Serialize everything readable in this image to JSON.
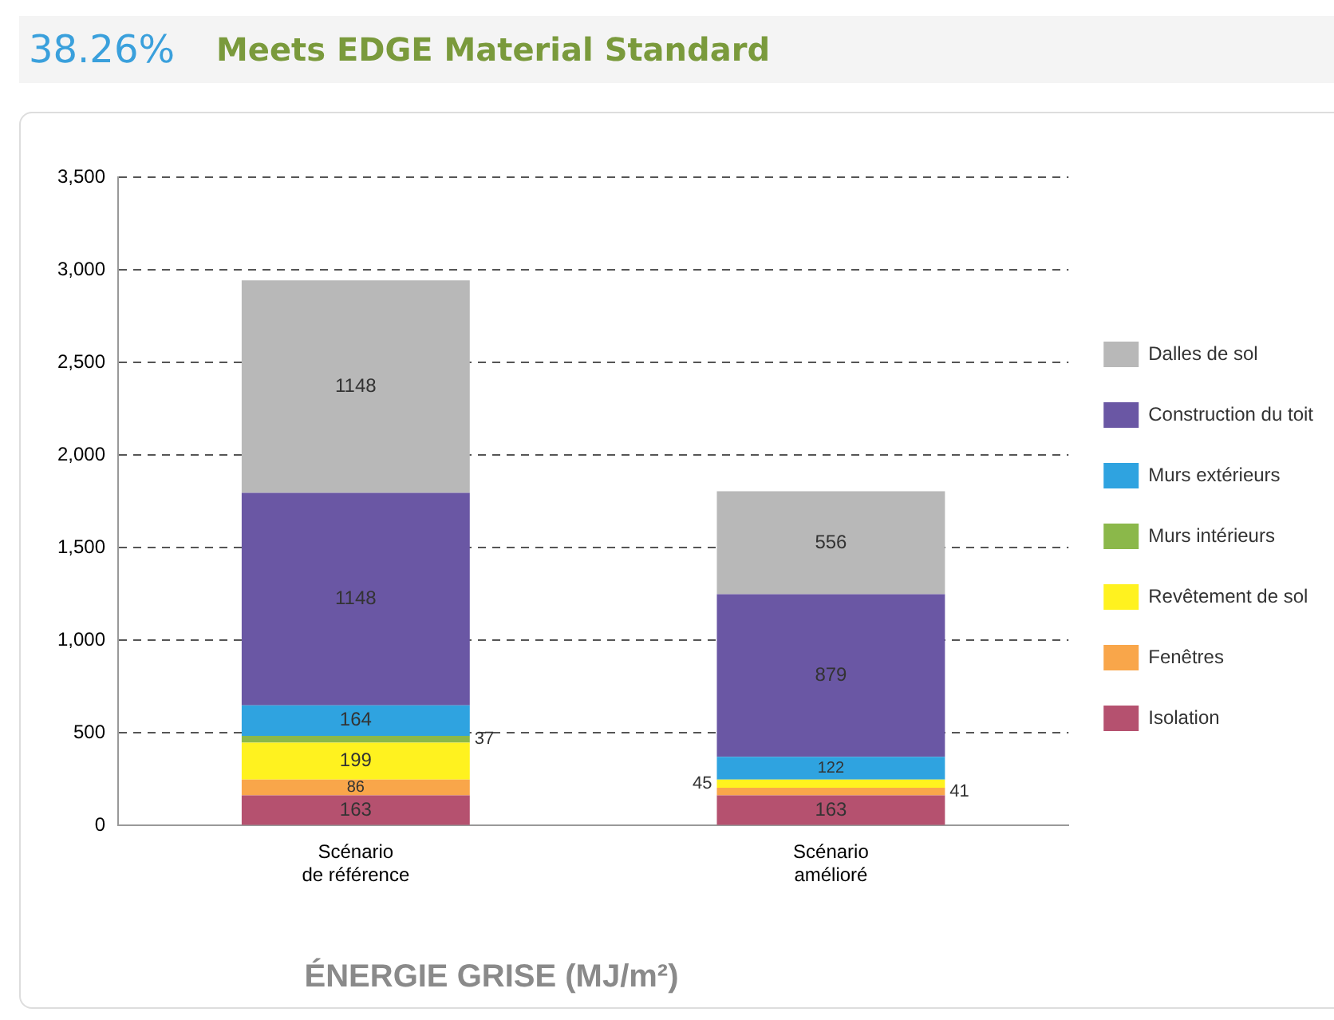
{
  "chart_data": {
    "type": "bar",
    "title": "38.26%",
    "subtitle": "Meets EDGE Material Standard",
    "xlabel": "ÉNERGIE GRISE (MJ/m²)",
    "categories": [
      "Scénario\nde référence",
      "Scénario\namélioré"
    ],
    "stacked": true,
    "data_labels": true,
    "grid": "y",
    "legend": "right",
    "ylim": [
      0,
      3500
    ],
    "yticks": [
      0,
      500,
      {
        "value": 1000,
        "label": "1,000"
      },
      {
        "value": 1500,
        "label": "1,500"
      },
      {
        "value": 2000,
        "label": "2,000"
      },
      {
        "value": 2500,
        "label": "2,500"
      },
      {
        "value": 3000,
        "label": "3,000"
      },
      {
        "value": 3500,
        "label": "3,500"
      }
    ],
    "series": [
      {
        "name": "Isolation",
        "color": "#b5516f",
        "values": [
          163,
          163
        ]
      },
      {
        "name": "Fenêtres",
        "color": "#f9a64a",
        "values": [
          86,
          41
        ]
      },
      {
        "name": "Revêtement de sol",
        "color": "#fff21f",
        "values": [
          199,
          45
        ]
      },
      {
        "name": "Murs intérieurs",
        "color": "#8bb84a",
        "values": [
          37,
          null
        ]
      },
      {
        "name": "Murs extérieurs",
        "color": "#2fa3e0",
        "values": [
          164,
          122
        ]
      },
      {
        "name": "Construction du toit",
        "color": "#6a57a4",
        "values": [
          1148,
          879
        ]
      },
      {
        "name": "Dalles de sol",
        "color": "#b8b8b8",
        "values": [
          1148,
          556
        ]
      }
    ]
  }
}
